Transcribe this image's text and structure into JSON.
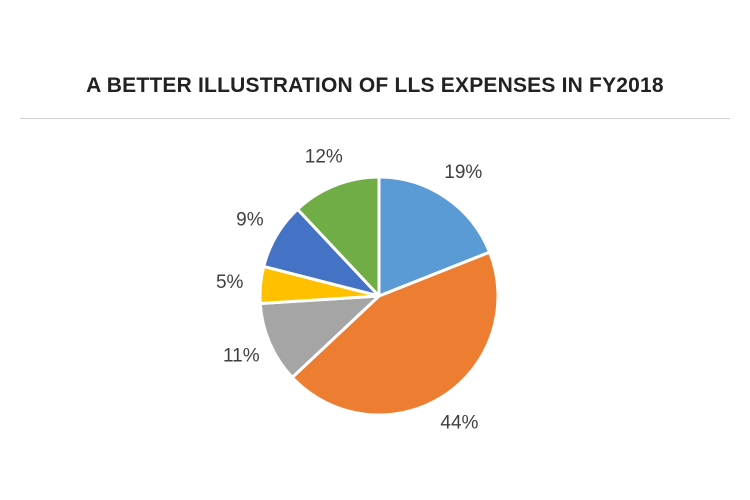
{
  "chart_data": {
    "type": "pie",
    "title": "A BETTER ILLUSTRATION OF LLS EXPENSES IN FY2018",
    "start_angle_deg": 0,
    "direction": "clockwise",
    "slices": [
      {
        "value": 19,
        "label": "19%",
        "color": "#5B9BD5"
      },
      {
        "value": 44,
        "label": "44%",
        "color": "#ED7D31"
      },
      {
        "value": 11,
        "label": "11%",
        "color": "#A5A5A5"
      },
      {
        "value": 5,
        "label": "5%",
        "color": "#FFC000"
      },
      {
        "value": 9,
        "label": "9%",
        "color": "#4472C4"
      },
      {
        "value": 12,
        "label": "12%",
        "color": "#70AD47"
      }
    ],
    "legend": "none"
  }
}
